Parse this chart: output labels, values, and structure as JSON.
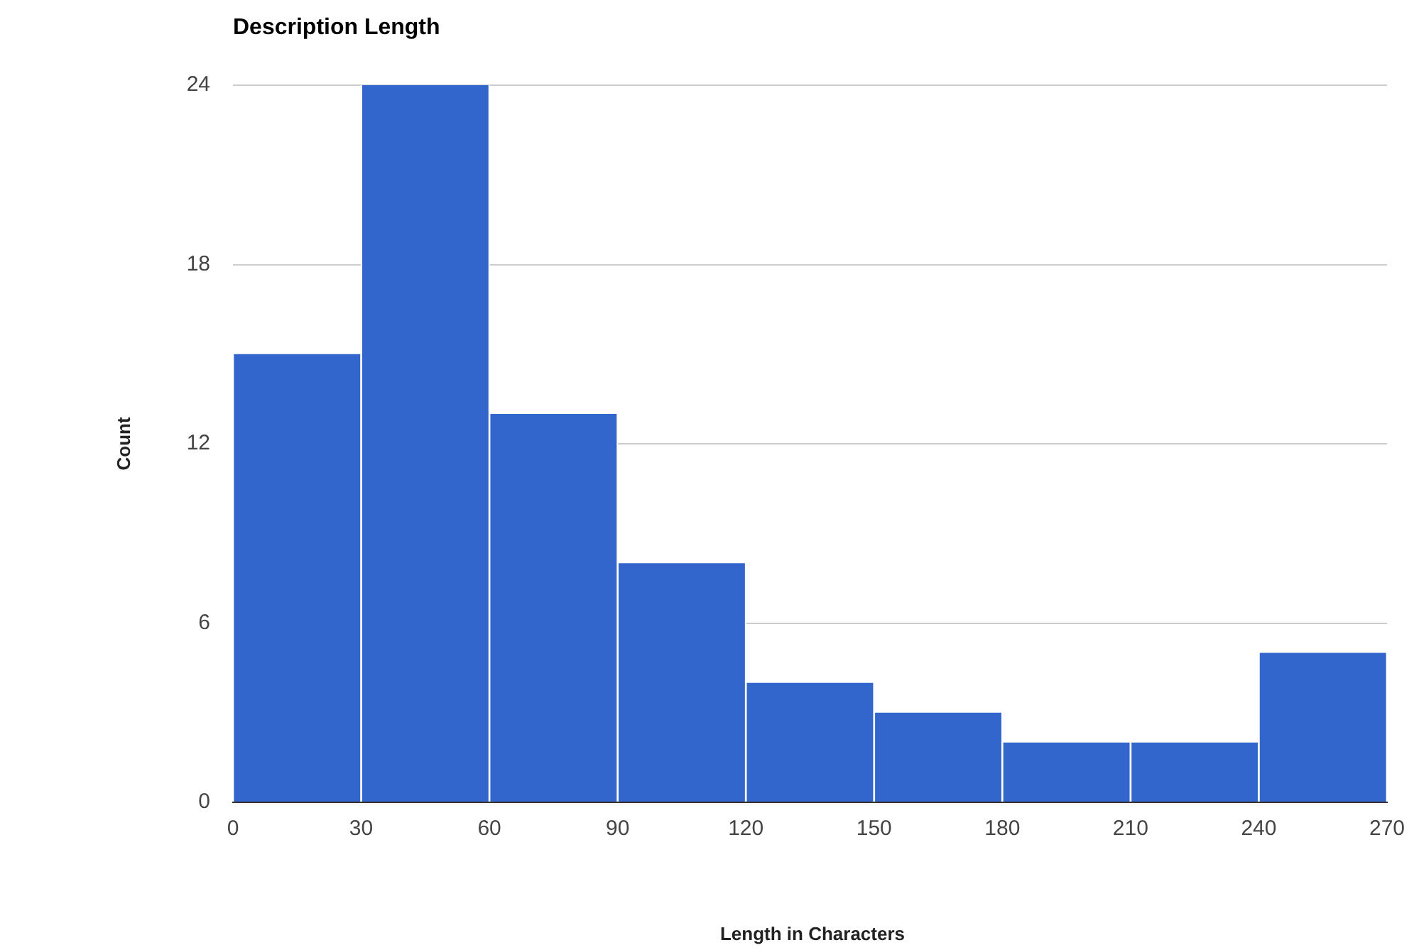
{
  "chart_data": {
    "type": "histogram",
    "title": "Description Length",
    "xlabel": "Length in Characters",
    "ylabel": "Count",
    "bins": [
      0,
      30,
      60,
      90,
      120,
      150,
      180,
      210,
      240,
      270
    ],
    "values": [
      15,
      24,
      13,
      8,
      4,
      3,
      2,
      2,
      5
    ],
    "color": "#3366cc",
    "xlim": [
      0,
      270
    ],
    "xticks": [
      0,
      30,
      60,
      90,
      120,
      150,
      180,
      210,
      240,
      270
    ],
    "ylim": [
      0,
      24
    ],
    "yticks": [
      0,
      6,
      12,
      18,
      24
    ],
    "grid": "y",
    "legend": false
  }
}
